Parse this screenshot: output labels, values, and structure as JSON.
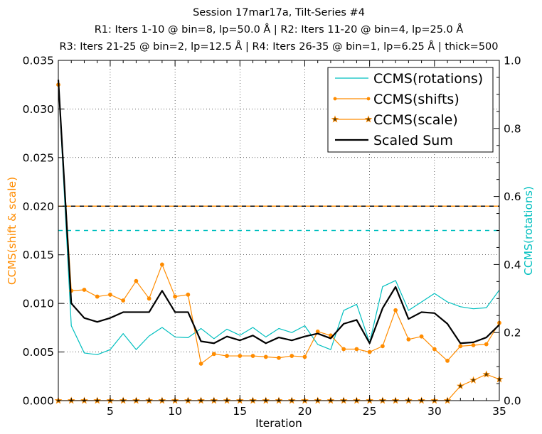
{
  "chart_data": {
    "type": "line",
    "title_lines": [
      "Session 17mar17a, Tilt-Series #4",
      "R1: Iters 1-10 @ bin=8, lp=50.0 Å | R2: Iters 11-20 @ bin=4, lp=25.0 Å",
      "R3: Iters 21-25 @ bin=2, lp=12.5 Å | R4: Iters 26-35 @ bin=1, lp=6.25 Å | thick=500"
    ],
    "xlabel": "Iteration",
    "ylabel_left": "CCMS(shift & scale)",
    "ylabel_right": "CCMS(rotations)",
    "xlim": [
      1,
      35
    ],
    "ylim_left": [
      0.0,
      0.035
    ],
    "ylim_right": [
      0.0,
      1.0
    ],
    "x_ticks": [
      5,
      10,
      15,
      20,
      25,
      30,
      35
    ],
    "x_tick_labels": [
      "5",
      "10",
      "15",
      "20",
      "25",
      "30",
      "35"
    ],
    "y_left_ticks": [
      0.0,
      0.005,
      0.01,
      0.015,
      0.02,
      0.025,
      0.03,
      0.035
    ],
    "y_left_tick_labels": [
      "0.000",
      "0.005",
      "0.010",
      "0.015",
      "0.020",
      "0.025",
      "0.030",
      "0.035"
    ],
    "y_right_ticks": [
      0.0,
      0.2,
      0.4,
      0.6,
      0.8,
      1.0
    ],
    "y_right_tick_labels": [
      "0.0",
      "0.2",
      "0.4",
      "0.6",
      "0.8",
      "1.0"
    ],
    "grid": true,
    "legend_position": "top-right",
    "x": [
      1,
      2,
      3,
      4,
      5,
      6,
      7,
      8,
      9,
      10,
      11,
      12,
      13,
      14,
      15,
      16,
      17,
      18,
      19,
      20,
      21,
      22,
      23,
      24,
      25,
      26,
      27,
      28,
      29,
      30,
      31,
      32,
      33,
      34,
      35
    ],
    "series": [
      {
        "name": "CCMS(rotations)",
        "axis": "right",
        "color": "#00bfbf",
        "marker": "none",
        "values": [
          0.94,
          0.22,
          0.14,
          0.135,
          0.15,
          0.197,
          0.15,
          0.19,
          0.215,
          0.187,
          0.185,
          0.212,
          0.182,
          0.21,
          0.192,
          0.215,
          0.187,
          0.212,
          0.2,
          0.22,
          0.165,
          0.15,
          0.265,
          0.283,
          0.17,
          0.335,
          0.353,
          0.265,
          0.29,
          0.315,
          0.29,
          0.276,
          0.27,
          0.273,
          0.325
        ]
      },
      {
        "name": "CCMS(shifts)",
        "axis": "left",
        "color": "#ff8c00",
        "marker": "dot",
        "values": [
          0.0325,
          0.0113,
          0.0114,
          0.0107,
          0.0109,
          0.0103,
          0.0123,
          0.0105,
          0.014,
          0.0107,
          0.0109,
          0.0038,
          0.0048,
          0.0046,
          0.0046,
          0.0046,
          0.0045,
          0.0044,
          0.0046,
          0.0045,
          0.0071,
          0.0067,
          0.0053,
          0.0053,
          0.005,
          0.0056,
          0.0093,
          0.0063,
          0.0066,
          0.0053,
          0.0041,
          0.0056,
          0.0057,
          0.0058,
          0.008
        ]
      },
      {
        "name": "CCMS(scale)",
        "axis": "left",
        "color": "#ff8c00",
        "marker": "star",
        "values": [
          0,
          0,
          0,
          0,
          0,
          0,
          0,
          0,
          0,
          0,
          0,
          0,
          0,
          0,
          0,
          0,
          0,
          0,
          0,
          0,
          0,
          0,
          0,
          0,
          0,
          0,
          0,
          0,
          0,
          0,
          0,
          0.0015,
          0.0021,
          0.0027,
          0.0022
        ]
      },
      {
        "name": "Scaled Sum",
        "axis": "left",
        "color": "#000000",
        "marker": "none",
        "values": [
          0.033,
          0.01,
          0.0085,
          0.0081,
          0.0085,
          0.0091,
          0.0091,
          0.0091,
          0.0113,
          0.0091,
          0.0091,
          0.0061,
          0.0059,
          0.0066,
          0.0062,
          0.0067,
          0.0059,
          0.0065,
          0.0062,
          0.0066,
          0.0069,
          0.0064,
          0.0079,
          0.0083,
          0.0059,
          0.0095,
          0.0117,
          0.0084,
          0.0091,
          0.009,
          0.0079,
          0.0059,
          0.006,
          0.0065,
          0.0078
        ]
      }
    ],
    "reference_lines": [
      {
        "name": "shift-scale-threshold",
        "axis": "left",
        "value": 0.02,
        "color": "#ff8c00",
        "style": "dashed"
      },
      {
        "name": "scaled-sum-threshold",
        "axis": "left",
        "value": 0.02,
        "color": "#000000",
        "style": "dashed"
      },
      {
        "name": "rotation-threshold",
        "axis": "right",
        "value": 0.5,
        "color": "#00bfbf",
        "style": "dashed"
      }
    ]
  }
}
